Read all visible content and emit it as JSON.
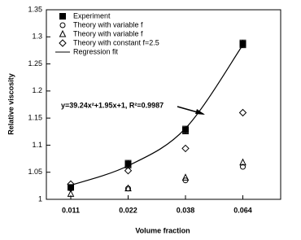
{
  "chart_data": {
    "type": "line",
    "x_label": "Volume fraction",
    "y_label": "Relative viscosity",
    "categories": [
      "0.011",
      "0.022",
      "0.038",
      "0.064"
    ],
    "ylim": [
      1,
      1.35
    ],
    "yticks": [
      1,
      1.05,
      1.1,
      1.15,
      1.2,
      1.25,
      1.3,
      1.35
    ],
    "annotation": "y=39.24x²+1.95x+1, R²=0.9987",
    "legend": "upper left",
    "series": [
      {
        "name": "Experiment",
        "color": "#000000",
        "marker": "square-filled",
        "values": [
          1.022,
          1.065,
          1.128,
          1.287
        ],
        "errors": [
          0.005,
          0.007,
          0.007,
          0.007
        ]
      },
      {
        "name": "Theory with variable f",
        "color": "#000000",
        "marker": "circle",
        "values": [
          1.02,
          1.02,
          1.035,
          1.06
        ]
      },
      {
        "name": "Theory with variable f",
        "color": "#000000",
        "marker": "triangle",
        "values": [
          1.01,
          1.02,
          1.04,
          1.068
        ]
      },
      {
        "name": "Theory with constant f=2.5",
        "color": "#000000",
        "marker": "diamond",
        "values": [
          1.028,
          1.053,
          1.094,
          1.16
        ]
      },
      {
        "name": "Regression fit",
        "color": "#000000",
        "marker": "line",
        "values": [
          1.026,
          1.062,
          1.131,
          1.285
        ]
      }
    ]
  }
}
